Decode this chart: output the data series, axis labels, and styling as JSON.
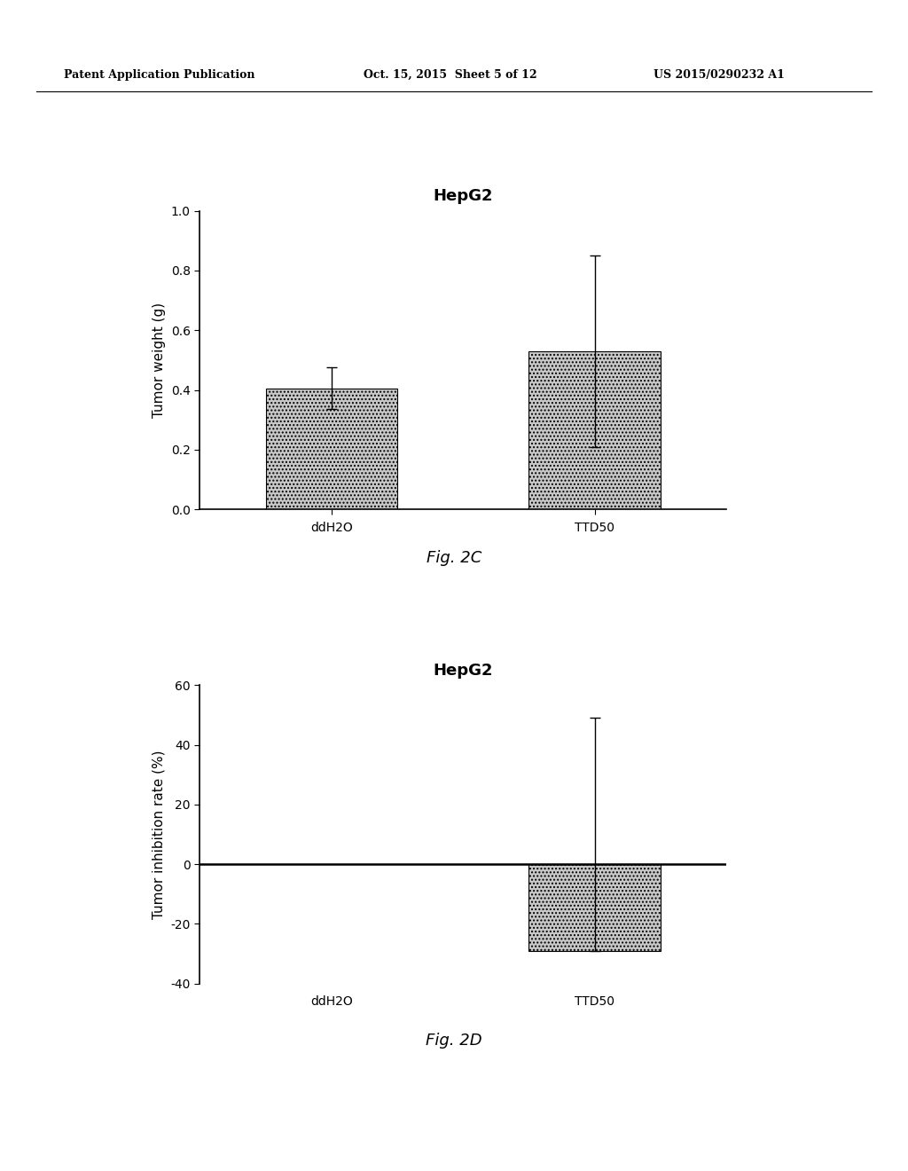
{
  "header_left": "Patent Application Publication",
  "header_mid": "Oct. 15, 2015  Sheet 5 of 12",
  "header_right": "US 2015/0290232 A1",
  "fig2c": {
    "title": "HepG2",
    "xlabel_labels": [
      "ddH2O",
      "TTD50"
    ],
    "ylabel": "Tumor weight (g)",
    "bar_values": [
      0.405,
      0.53
    ],
    "bar_errors_lo": [
      0.07,
      0.32
    ],
    "bar_errors_hi": [
      0.07,
      0.32
    ],
    "ylim": [
      0.0,
      1.0
    ],
    "yticks": [
      0.0,
      0.2,
      0.4,
      0.6,
      0.8,
      1.0
    ],
    "caption": "Fig. 2C"
  },
  "fig2d": {
    "title": "HepG2",
    "xlabel_labels": [
      "ddH2O",
      "TTD50"
    ],
    "ylabel": "Tumor inhibition rate (%)",
    "bar_values": [
      0.0,
      -29.0
    ],
    "bar_errors_lo": [
      0.0,
      0.0
    ],
    "bar_errors_hi": [
      0.0,
      78.0
    ],
    "ylim": [
      -40,
      60
    ],
    "yticks": [
      -40,
      -20,
      0,
      20,
      40,
      60
    ],
    "caption": "Fig. 2D"
  },
  "bar_color": "#c8c8c8",
  "bar_hatch": "....",
  "background_color": "#ffffff",
  "text_color": "#000000",
  "title_fontsize": 13,
  "axis_fontsize": 11,
  "tick_fontsize": 10,
  "caption_fontsize": 13,
  "header_fontsize": 9
}
